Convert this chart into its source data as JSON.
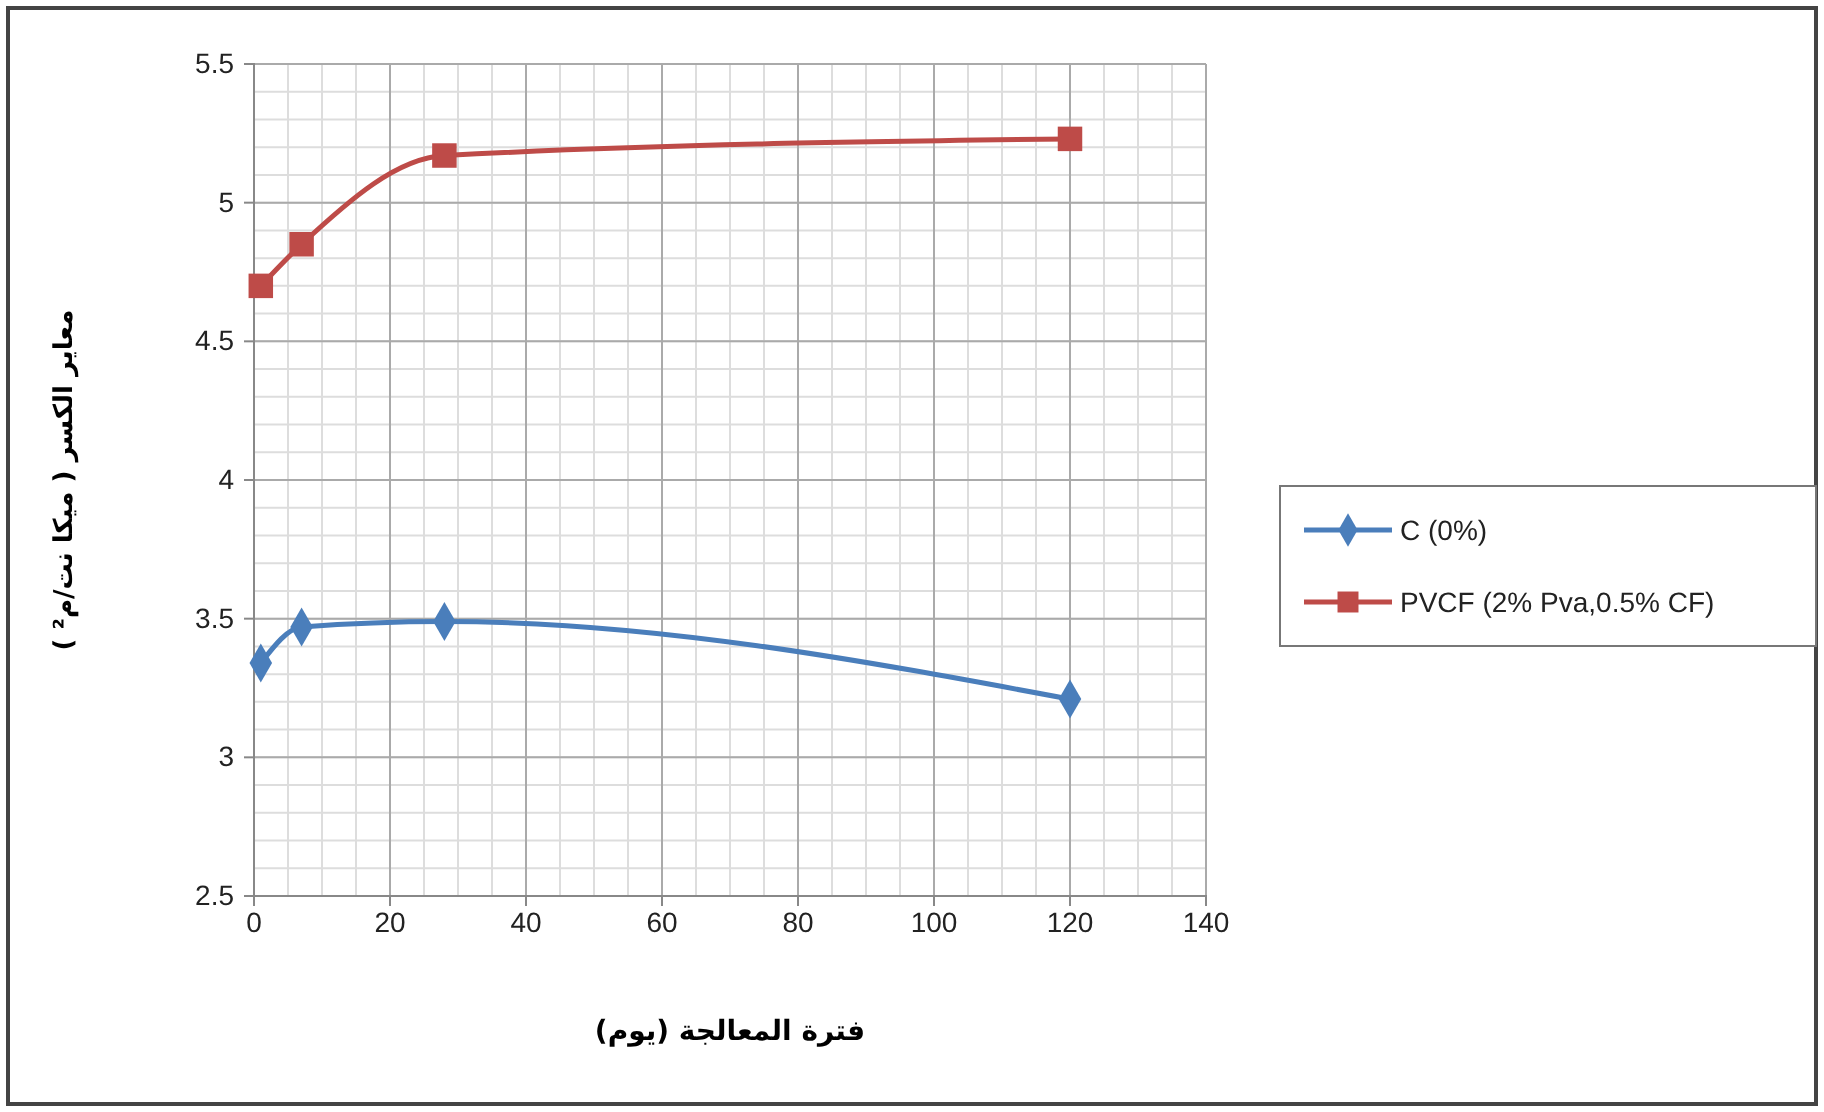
{
  "chart_data": {
    "type": "line",
    "xlabel": "فترة المعالجة (يوم)",
    "ylabel": "معاير الكسر ( ميكا نت/م² )",
    "x": [
      1,
      7,
      28,
      120
    ],
    "series": [
      {
        "name": "C (0%)",
        "color": "#4a7ebb",
        "marker": "diamond",
        "values": [
          3.34,
          3.47,
          3.49,
          3.21
        ]
      },
      {
        "name": "PVCF (2% Pva,0.5% CF)",
        "color": "#be4b48",
        "marker": "square",
        "values": [
          4.7,
          4.85,
          5.17,
          5.23
        ]
      }
    ],
    "xlim": [
      0,
      140
    ],
    "xticks": [
      0,
      20,
      40,
      60,
      80,
      100,
      120,
      140
    ],
    "ylim": [
      2.5,
      5.5
    ],
    "yticks": [
      2.5,
      3,
      3.5,
      4,
      4.5,
      5,
      5.5
    ],
    "grid": true,
    "legend": "right",
    "line_style": "solid"
  }
}
